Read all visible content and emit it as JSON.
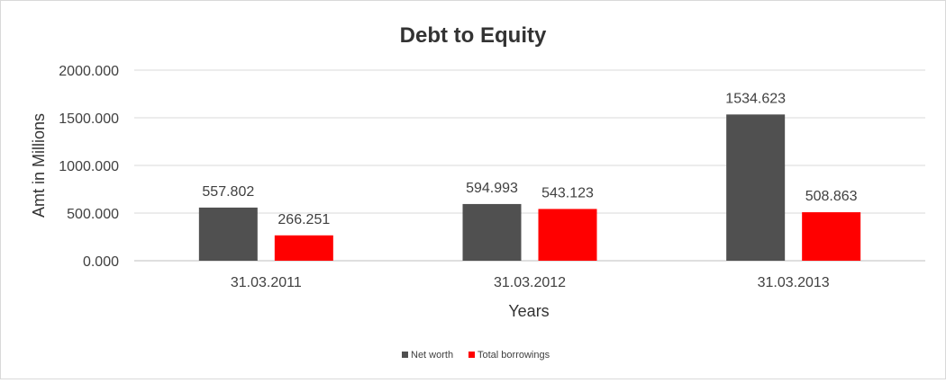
{
  "chart_data": {
    "type": "bar",
    "title": "Debt to Equity",
    "xlabel": "Years",
    "ylabel": "Amt in Millions",
    "categories": [
      "31.03.2011",
      "31.03.2012",
      "31.03.2013"
    ],
    "series": [
      {
        "name": "Net worth",
        "values": [
          557.802,
          594.993,
          1534.623
        ],
        "color": "#505050"
      },
      {
        "name": "Total borrowings",
        "values": [
          266.251,
          543.123,
          508.863
        ],
        "color": "#ff0000"
      }
    ],
    "data_labels": [
      [
        "557.802",
        "594.993",
        "1534.623"
      ],
      [
        "266.251",
        "543.123",
        "508.863"
      ]
    ],
    "ylim": [
      0,
      2000
    ],
    "yticks": [
      "0.000",
      "500.000",
      "1000.000",
      "1500.000",
      "2000.000"
    ],
    "grid": true,
    "legend": "bottom-center"
  }
}
